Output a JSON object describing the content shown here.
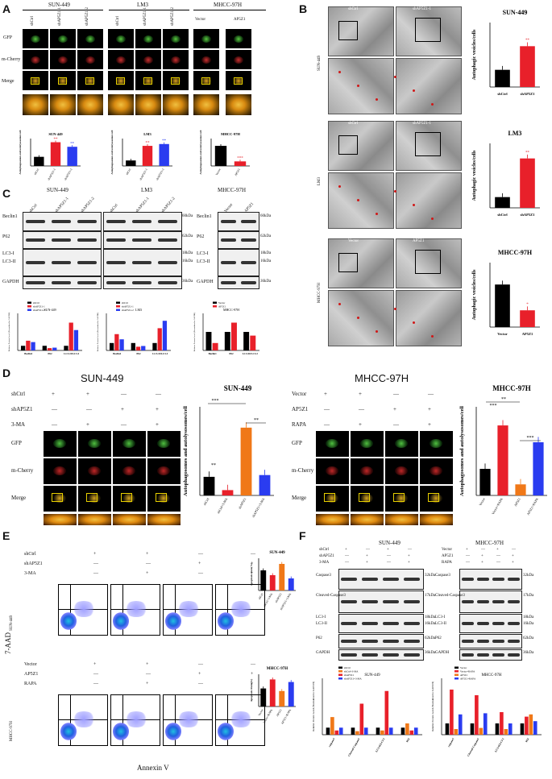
{
  "panels": {
    "A": "A",
    "B": "B",
    "C": "C",
    "D": "D",
    "E": "E",
    "F": "F"
  },
  "panelA": {
    "groups": [
      "SUN-449",
      "LM3",
      "MHCC-97H"
    ],
    "columns": [
      "shCtrl",
      "shAP5Z1-1",
      "shAP5Z1-2",
      "shCtrl",
      "shAP5Z1-1",
      "shAP5Z1-2",
      "Vector",
      "AP5Z1"
    ],
    "rows": [
      "GFP",
      "m-Cherry",
      "Merge"
    ],
    "chart_titles": [
      "SUN-449",
      "LM3",
      "MHCC-97H"
    ],
    "ylabel": "Autophagosomes and autolysosomes/cell"
  },
  "panelB": {
    "em_labels": [
      {
        "left": "shCtrl",
        "right": "shAP5Z1-1",
        "side": "SUN-449"
      },
      {
        "left": "shCtrl",
        "right": "shAP5Z1-1",
        "side": "LM3"
      },
      {
        "left": "Vector",
        "right": "AP5Z1",
        "side": "MHCC-97H"
      }
    ],
    "ylabel": "Autophagic vesicles/cells"
  },
  "panelC": {
    "groups": [
      "SUN-449",
      "LM3",
      "MHCC-97H"
    ],
    "lanes_kd": [
      "shCtrl",
      "shAP5Z1-1",
      "shAP5Z1-2"
    ],
    "lanes_oe": [
      "Vector",
      "AP5Z1"
    ],
    "proteins_kd": [
      "Beclin1",
      "P62",
      "LC3-I",
      "LC3-II",
      "GAPDH"
    ],
    "proteins_oe": [
      "Beclin1",
      "P62",
      "LC3-I",
      "LC3-II",
      "GAPDH"
    ],
    "kda": [
      "60kDa",
      "62kDa",
      "18kDa",
      "16kDa",
      "36kDa"
    ],
    "chart_cats": [
      "Beclin1",
      "P62",
      "LC3-II/LC3-I"
    ],
    "ylabel": "Relative Protein Level (Normalized to GAPDH)"
  },
  "panelD": {
    "left_title": "SUN-449",
    "right_title": "MHCC-97H",
    "left_treatments": [
      "shCtrl",
      "shAP5Z1",
      "3-MA"
    ],
    "right_treatments": [
      "Vector",
      "AP5Z1",
      "RAPA"
    ],
    "rows": [
      "GFP",
      "m-Cherry",
      "Merge"
    ],
    "left_signs": [
      [
        "+",
        "+",
        "—",
        "—"
      ],
      [
        "—",
        "—",
        "+",
        "+"
      ],
      [
        "—",
        "+",
        "—",
        "+"
      ]
    ],
    "right_signs": [
      [
        "+",
        "+",
        "—",
        "—"
      ],
      [
        "—",
        "—",
        "+",
        "+"
      ],
      [
        "—",
        "+",
        "—",
        "+"
      ]
    ],
    "ylabel": "Autophagosomes and autolysosomes/cell",
    "sig": [
      "***",
      "**",
      "**",
      "***",
      "**",
      "***"
    ]
  },
  "panelE": {
    "treat_top": [
      "shCtrl",
      "shAP5Z1",
      "3-MA"
    ],
    "treat_bot": [
      "Vector",
      "AP5Z1",
      "RAPA"
    ],
    "signs_top": [
      [
        "+",
        "+",
        "—",
        "—"
      ],
      [
        "—",
        "—",
        "+",
        "+"
      ],
      [
        "—",
        "+",
        "—",
        "+"
      ]
    ],
    "signs_bot": [
      [
        "+",
        "+",
        "—",
        "—"
      ],
      [
        "—",
        "—",
        "+",
        "+"
      ],
      [
        "—",
        "+",
        "—",
        "+"
      ]
    ],
    "row_labels": [
      "SUN-449",
      "MHCC-97H"
    ],
    "xaxis": "Annexin V",
    "yaxis": "7-AAD",
    "chart_titles": [
      "SUN-449",
      "MHCC-97H"
    ],
    "ylabel": "Apoptosis Rate(%)"
  },
  "panelF": {
    "groups": [
      "SUN-449",
      "MHCC-97H"
    ],
    "treat_left": [
      "shCtrl",
      "shAP5Z1",
      "3-MA"
    ],
    "treat_right": [
      "Vector",
      "AP5Z1",
      "RAPA"
    ],
    "proteins": [
      "Caspase3",
      "Cleaved-Caspase3",
      "LC3-I",
      "LC3-II",
      "P62",
      "GAPDH"
    ],
    "kda": [
      "32kDa",
      "17kDa",
      "18kDa",
      "16kDa",
      "62kDa",
      "36kDa"
    ],
    "chart_titles": [
      "SUN-449",
      "MHCC-97H"
    ],
    "chart_cats": [
      "caspase3",
      "Cleaved-Caspase3",
      "LC3-II/LC3-I",
      "P62"
    ],
    "ylabel": "Relative Protein Level (Normalized to GAPDH)"
  },
  "colors": {
    "black": "#000000",
    "red": "#e8202a",
    "blue": "#2a3cf0",
    "orange": "#f07818",
    "yellow_box": "#e8d000"
  },
  "chart_data": [
    {
      "type": "bar",
      "title": "SUN-449",
      "categories": [
        "shCtrl",
        "shAP5Z1-1",
        "shAP5Z1-2"
      ],
      "values": [
        10,
        26,
        21
      ],
      "ylim": [
        0,
        30
      ],
      "colors": [
        "#000000",
        "#e8202a",
        "#2a3cf0"
      ],
      "sig": [
        "",
        "**",
        "**"
      ]
    },
    {
      "type": "bar",
      "title": "LM3",
      "categories": [
        "shCtrl",
        "shAP5Z1-1",
        "shAP5Z1-2"
      ],
      "values": [
        6,
        22,
        24
      ],
      "ylim": [
        0,
        30
      ],
      "colors": [
        "#000000",
        "#e8202a",
        "#2a3cf0"
      ],
      "sig": [
        "",
        "**",
        "**"
      ]
    },
    {
      "type": "bar",
      "title": "MHCC-97H",
      "categories": [
        "Vector",
        "AP5Z1"
      ],
      "values": [
        11,
        2.5
      ],
      "ylim": [
        0,
        15
      ],
      "colors": [
        "#000000",
        "#e8202a"
      ],
      "sig": [
        "",
        "***"
      ]
    },
    {
      "type": "bar",
      "title": "SUN-449",
      "categories": [
        "shCtrl",
        "shAP5Z1"
      ],
      "values": [
        4,
        9.5
      ],
      "ylim": [
        0,
        15
      ],
      "ylabel": "Autophagic vesicles/cells",
      "colors": [
        "#000000",
        "#e8202a"
      ],
      "sig": [
        "",
        "**"
      ]
    },
    {
      "type": "bar",
      "title": "LM3",
      "categories": [
        "shCtrl",
        "shAP5Z1"
      ],
      "values": [
        2.5,
        11.5
      ],
      "ylim": [
        0,
        15
      ],
      "ylabel": "Autophagic vesicles/cells",
      "colors": [
        "#000000",
        "#e8202a"
      ],
      "sig": [
        "",
        "**"
      ]
    },
    {
      "type": "bar",
      "title": "MHCC-97H",
      "categories": [
        "Vector",
        "AP5Z1"
      ],
      "values": [
        3.3,
        1.3
      ],
      "ylim": [
        0,
        5
      ],
      "ylabel": "Autophagic vesicles/cells",
      "colors": [
        "#000000",
        "#e8202a"
      ],
      "sig": [
        "",
        "*"
      ]
    },
    {
      "type": "bar",
      "title": "SUN-449",
      "categories": [
        "Beclin1",
        "P62",
        "LC3-II/LC3-I"
      ],
      "series": [
        {
          "name": "shCtrl",
          "values": [
            1.0,
            1.0,
            1.0
          ]
        },
        {
          "name": "shAP5Z1-1",
          "values": [
            2.1,
            0.5,
            6.0
          ]
        },
        {
          "name": "shAP5Z1-2",
          "values": [
            1.8,
            0.6,
            4.4
          ]
        }
      ],
      "ylim": [
        0,
        8
      ],
      "colors": [
        "#000000",
        "#e8202a",
        "#2a3cf0"
      ]
    },
    {
      "type": "bar",
      "title": "LM3",
      "categories": [
        "Beclin1",
        "P62",
        "LC3-II/LC3-I"
      ],
      "series": [
        {
          "name": "shCtrl",
          "values": [
            1.0,
            1.0,
            1.0
          ]
        },
        {
          "name": "shAP5Z1-1",
          "values": [
            2.2,
            0.5,
            3.0
          ]
        },
        {
          "name": "shAP5Z1-2",
          "values": [
            1.5,
            0.6,
            4.0
          ]
        }
      ],
      "ylim": [
        0,
        5
      ],
      "colors": [
        "#000000",
        "#e8202a",
        "#2a3cf0"
      ]
    },
    {
      "type": "bar",
      "title": "MHCC-97H",
      "categories": [
        "Beclin1",
        "P62",
        "LC3-II/LC3-I"
      ],
      "series": [
        {
          "name": "Vector",
          "values": [
            1.0,
            1.0,
            1.0
          ]
        },
        {
          "name": "AP5Z1",
          "values": [
            0.4,
            1.5,
            0.8
          ]
        }
      ],
      "ylim": [
        0,
        2
      ],
      "colors": [
        "#000000",
        "#e8202a"
      ]
    },
    {
      "type": "bar",
      "title": "SUN-449",
      "categories": [
        "shCtrl",
        "shCtrl+3-MA",
        "shAP5Z1",
        "shAP5Z1+3-MA"
      ],
      "values": [
        4.2,
        1.2,
        15.3,
        4.6
      ],
      "ylim": [
        0,
        20
      ],
      "colors": [
        "#000000",
        "#e8202a",
        "#f07818",
        "#2a3cf0"
      ]
    },
    {
      "type": "bar",
      "title": "MHCC-97H",
      "categories": [
        "Vector",
        "Vector+RAPA",
        "AP5Z1",
        "AP5Z1+RAPA"
      ],
      "values": [
        6,
        15.8,
        2.5,
        12
      ],
      "ylim": [
        0,
        20
      ],
      "colors": [
        "#000000",
        "#e8202a",
        "#f07818",
        "#2a3cf0"
      ]
    },
    {
      "type": "bar",
      "title": "SUN-449",
      "categories": [
        "shCtrl",
        "shCtrl+3-MA",
        "shAP5Z1",
        "shAP5Z1+3-MA"
      ],
      "values": [
        25,
        19,
        33,
        15
      ],
      "ylim": [
        0,
        40
      ],
      "ylabel": "Apoptosis Rate(%)",
      "colors": [
        "#000000",
        "#e8202a",
        "#f07818",
        "#2a3cf0"
      ]
    },
    {
      "type": "bar",
      "title": "MHCC-97H",
      "categories": [
        "Vector",
        "Vector+RAPA",
        "AP5Z1",
        "AP5Z1+RAPA"
      ],
      "values": [
        14,
        21,
        12,
        19
      ],
      "ylim": [
        0,
        25
      ],
      "ylabel": "Apoptosis Rate(%)",
      "colors": [
        "#000000",
        "#e8202a",
        "#f07818",
        "#2a3cf0"
      ]
    },
    {
      "type": "bar",
      "title": "SUN-449",
      "categories": [
        "caspase3",
        "Cleaved-Caspase3",
        "LC3-II/LC3-I",
        "P62"
      ],
      "series": [
        {
          "name": "shCtrl",
          "values": [
            1,
            1,
            1,
            1
          ]
        },
        {
          "name": "shCtrl+3-MA",
          "values": [
            2.5,
            0.5,
            0.6,
            1.6
          ]
        },
        {
          "name": "shAP5Z1",
          "values": [
            0.6,
            4.4,
            6.2,
            0.6
          ]
        },
        {
          "name": "shAP5Z1+3-MA",
          "values": [
            1.0,
            1.0,
            1.0,
            1.0
          ]
        }
      ],
      "ylim": [
        0,
        8
      ],
      "colors": [
        "#000000",
        "#f07818",
        "#e8202a",
        "#2a3cf0"
      ]
    },
    {
      "type": "bar",
      "title": "MHCC-97H",
      "categories": [
        "caspase3",
        "Cleaved-Caspase3",
        "LC3-II/LC3-I",
        "P62"
      ],
      "series": [
        {
          "name": "Vector",
          "values": [
            1,
            1,
            1,
            1
          ]
        },
        {
          "name": "Vector+RAPA",
          "values": [
            4,
            3.5,
            2,
            1.6
          ]
        },
        {
          "name": "AP5Z1",
          "values": [
            0.5,
            0.6,
            0.5,
            1.8
          ]
        },
        {
          "name": "AP5Z1+RAPA",
          "values": [
            1.8,
            1.9,
            1.0,
            1.2
          ]
        }
      ],
      "ylim": [
        0,
        5
      ],
      "colors": [
        "#000000",
        "#e8202a",
        "#f07818",
        "#2a3cf0"
      ]
    }
  ]
}
